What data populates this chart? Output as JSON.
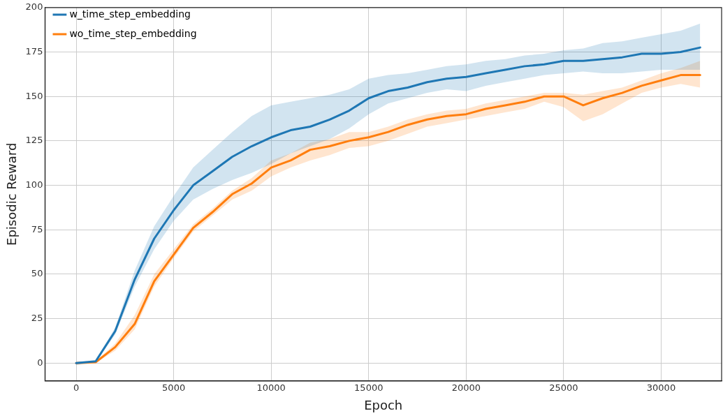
{
  "chart_data": {
    "type": "line",
    "xlabel": "Epoch",
    "ylabel": "Episodic Reward",
    "x": [
      0,
      1000,
      2000,
      3000,
      4000,
      5000,
      6000,
      7000,
      8000,
      9000,
      10000,
      11000,
      12000,
      13000,
      14000,
      15000,
      16000,
      17000,
      18000,
      19000,
      20000,
      21000,
      22000,
      23000,
      24000,
      25000,
      26000,
      27000,
      28000,
      29000,
      30000,
      31000,
      32000
    ],
    "series": [
      {
        "name": "w_time_step_embedding",
        "color": "#1f77b4",
        "values": [
          0,
          1,
          18,
          47,
          70,
          86,
          100,
          108,
          116,
          122,
          127,
          131,
          133,
          137,
          142,
          149,
          153,
          155,
          158,
          160,
          161,
          163,
          165,
          167,
          168,
          170,
          170,
          171,
          172,
          174,
          174,
          175,
          177.5
        ],
        "upper": [
          0,
          1.5,
          20,
          52,
          77,
          94,
          110,
          120,
          130,
          139,
          145,
          147,
          149,
          151,
          154,
          160,
          162,
          163,
          165,
          167,
          168,
          170,
          171,
          173,
          174,
          176,
          177,
          180,
          181,
          183,
          185,
          187,
          191
        ],
        "lower": [
          -1,
          0.5,
          16,
          43,
          64,
          80,
          92,
          98,
          103,
          107,
          112,
          118,
          122,
          126,
          132,
          140,
          146,
          149,
          152,
          154,
          153,
          156,
          158,
          160,
          162,
          163,
          164,
          163,
          163,
          164,
          165,
          165,
          165
        ]
      },
      {
        "name": "wo_time_step_embedding",
        "color": "#ff7f0e",
        "values": [
          0,
          0.5,
          9,
          22,
          46,
          61,
          76,
          85,
          95,
          101,
          110,
          114,
          120,
          122,
          125,
          127,
          130,
          134,
          137,
          139,
          140,
          143,
          145,
          147,
          150,
          150,
          145,
          149,
          152,
          156,
          159,
          162,
          162
        ],
        "upper": [
          0.5,
          1,
          11,
          27,
          50,
          64,
          78,
          87,
          97,
          104,
          114,
          118,
          124,
          126,
          130,
          130,
          133,
          137,
          140,
          142,
          143,
          146,
          148,
          150,
          152,
          152,
          151,
          153,
          155,
          159,
          163,
          166,
          170
        ],
        "lower": [
          -1,
          0,
          7,
          19,
          43,
          59,
          74,
          83,
          92,
          97,
          105,
          110,
          114,
          117,
          121,
          122,
          125,
          129,
          133,
          135,
          137,
          139,
          141,
          143,
          147,
          144,
          136,
          140,
          146,
          152,
          155,
          157,
          155
        ]
      }
    ],
    "xlim": [
      -1600,
      33100
    ],
    "ylim": [
      -10,
      200
    ],
    "xticks": [
      0,
      5000,
      10000,
      15000,
      20000,
      25000,
      30000
    ],
    "yticks": [
      0,
      25,
      50,
      75,
      100,
      125,
      150,
      175,
      200
    ],
    "grid": true,
    "legend": "top left",
    "marker": "none",
    "line_style": "solid"
  }
}
